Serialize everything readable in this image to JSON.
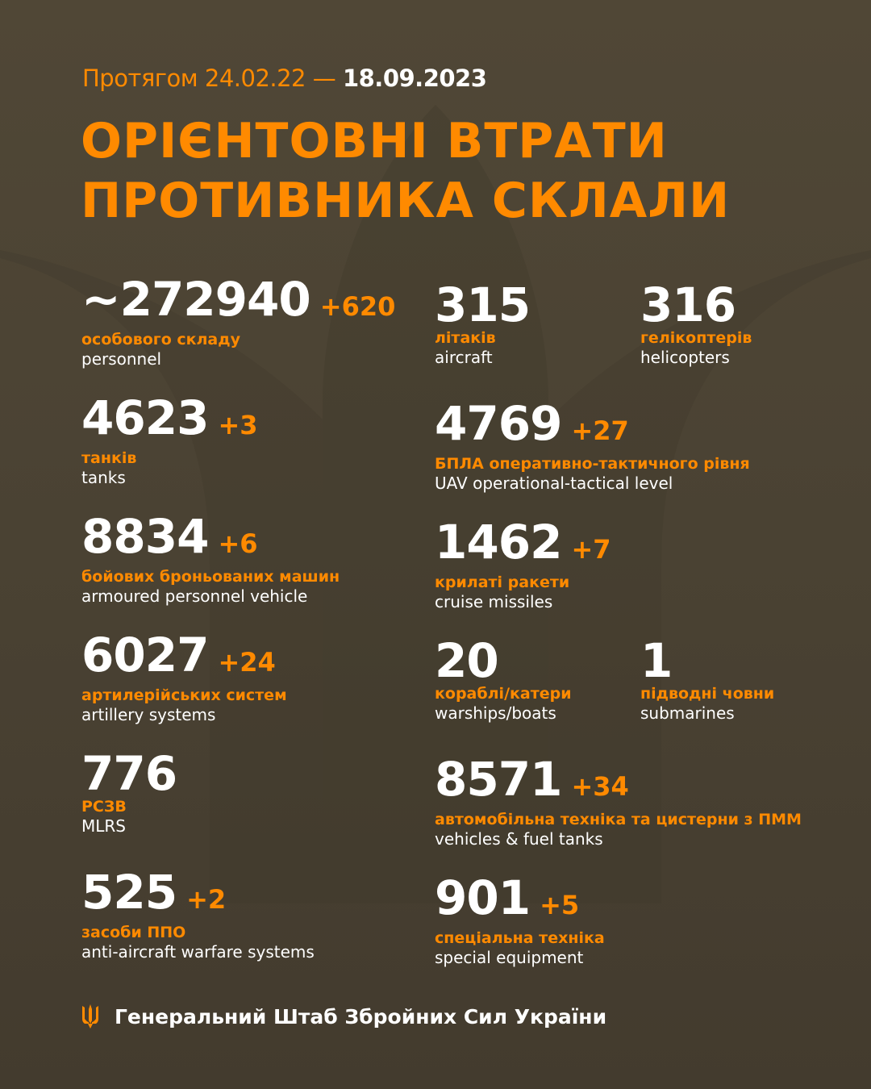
{
  "header": {
    "period_prefix": "Протягом 24.02.22 —",
    "period_date": "18.09.2023",
    "title_line1": "ОРІЄНТОВНІ ВТРАТИ",
    "title_line2": "ПРОТИВНИКА СКЛАЛИ"
  },
  "left": [
    {
      "value": "~272940",
      "delta": "+620",
      "ua": "особового складу",
      "en": "personnel"
    },
    {
      "value": "4623",
      "delta": "+3",
      "ua": "танків",
      "en": "tanks"
    },
    {
      "value": "8834",
      "delta": "+6",
      "ua": "бойових броньованих машин",
      "en": "armoured personnel vehicle"
    },
    {
      "value": "6027",
      "delta": "+24",
      "ua": "артилерійських систем",
      "en": "artillery systems"
    },
    {
      "value": "776",
      "delta": "",
      "ua": "РСЗВ",
      "en": "MLRS"
    },
    {
      "value": "525",
      "delta": "+2",
      "ua": "засоби ППО",
      "en": "anti-aircraft warfare systems"
    }
  ],
  "right": [
    {
      "value": "315",
      "delta": "",
      "ua": "літаків",
      "en": "aircraft"
    },
    {
      "value": "316",
      "delta": "",
      "ua": "гелікоптерів",
      "en": "helicopters"
    },
    {
      "value": "4769",
      "delta": "+27",
      "ua": "БПЛА оперативно-тактичного рівня",
      "en": "UAV operational-tactical level"
    },
    {
      "value": "1462",
      "delta": "+7",
      "ua": "крилаті ракети",
      "en": "cruise missiles"
    },
    {
      "value": "20",
      "delta": "",
      "ua": "кораблі/катери",
      "en": "warships/boats"
    },
    {
      "value": "1",
      "delta": "",
      "ua": "підводні човни",
      "en": "submarines"
    },
    {
      "value": "8571",
      "delta": "+34",
      "ua": "автомобільна техніка та цистерни з ПММ",
      "en": "vehicles & fuel tanks"
    },
    {
      "value": "901",
      "delta": "+5",
      "ua": "спеціальна техніка",
      "en": "special equipment"
    }
  ],
  "footer": {
    "org": "Генеральний Штаб Збройних Сил України",
    "logo_icon": "trident-icon"
  },
  "colors": {
    "accent": "#ff8a00",
    "background": "#4c4434",
    "text": "#ffffff"
  }
}
